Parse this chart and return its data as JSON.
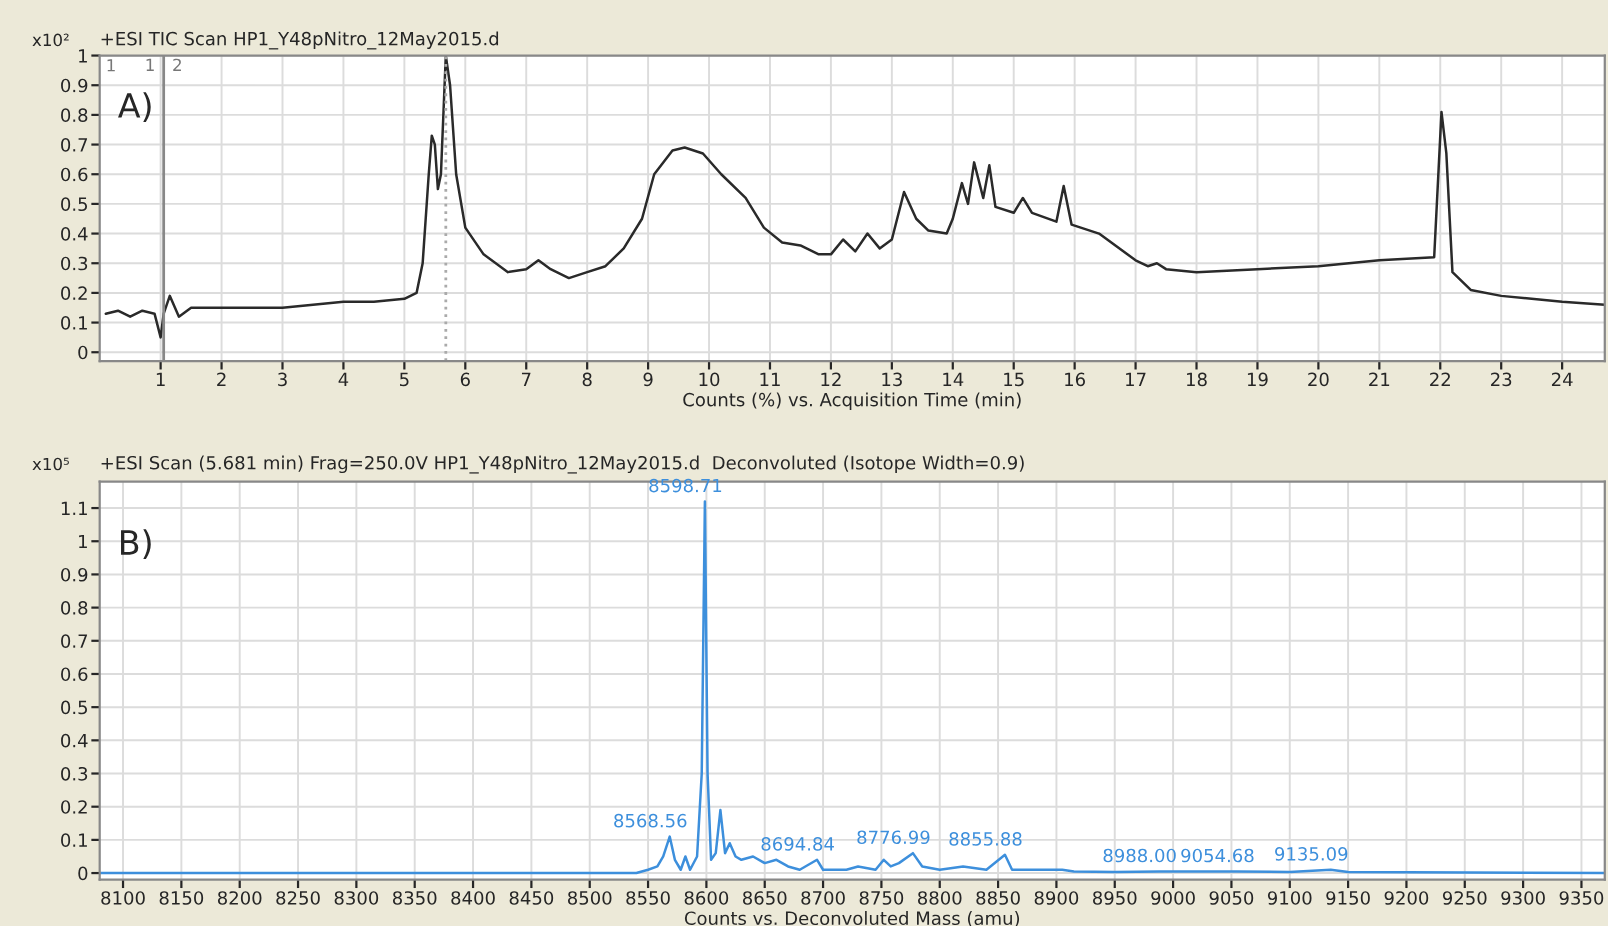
{
  "chart_data": [
    {
      "type": "line",
      "title": "+ESI TIC Scan HP1_Y48pNitro_12May2015.d",
      "xlabel": "Counts (%) vs. Acquisition Time (min)",
      "xlim": [
        0,
        24.7
      ],
      "ylim": [
        -0.03,
        1.0
      ],
      "xticks": [
        1,
        2,
        3,
        4,
        5,
        6,
        7,
        8,
        9,
        10,
        11,
        12,
        13,
        14,
        15,
        16,
        17,
        18,
        19,
        20,
        21,
        22,
        23,
        24
      ],
      "yticks": [
        0,
        0.1,
        0.2,
        0.3,
        0.4,
        0.5,
        0.6,
        0.7,
        0.8,
        0.9,
        1
      ],
      "grid": true,
      "series": [
        {
          "color": "#2a2a2a",
          "x": [
            0.1,
            0.3,
            0.5,
            0.7,
            0.9,
            1.0,
            1.05,
            1.15,
            1.3,
            1.5,
            2,
            3,
            4,
            4.5,
            5,
            5.2,
            5.3,
            5.4,
            5.45,
            5.5,
            5.55,
            5.6,
            5.68,
            5.75,
            5.85,
            6,
            6.3,
            6.7,
            7,
            7.2,
            7.4,
            7.7,
            8,
            8.3,
            8.6,
            8.9,
            9.1,
            9.4,
            9.6,
            9.9,
            10.2,
            10.6,
            10.9,
            11.2,
            11.5,
            11.8,
            12,
            12.2,
            12.4,
            12.6,
            12.8,
            13.0,
            13.2,
            13.4,
            13.6,
            13.9,
            14.0,
            14.15,
            14.25,
            14.35,
            14.5,
            14.6,
            14.7,
            15.0,
            15.15,
            15.3,
            15.7,
            15.82,
            15.95,
            16.4,
            17.0,
            17.2,
            17.35,
            17.5,
            18,
            19,
            20,
            21,
            21.9,
            22.02,
            22.1,
            22.2,
            22.5,
            23,
            24,
            24.7
          ],
          "values": [
            0.13,
            0.14,
            0.12,
            0.14,
            0.13,
            0.05,
            0.13,
            0.19,
            0.12,
            0.15,
            0.15,
            0.15,
            0.17,
            0.17,
            0.18,
            0.2,
            0.3,
            0.6,
            0.73,
            0.7,
            0.55,
            0.6,
            1.0,
            0.9,
            0.6,
            0.42,
            0.33,
            0.27,
            0.28,
            0.31,
            0.28,
            0.25,
            0.27,
            0.29,
            0.35,
            0.45,
            0.6,
            0.68,
            0.69,
            0.67,
            0.6,
            0.52,
            0.42,
            0.37,
            0.36,
            0.33,
            0.33,
            0.38,
            0.34,
            0.4,
            0.35,
            0.38,
            0.54,
            0.45,
            0.41,
            0.4,
            0.45,
            0.57,
            0.5,
            0.64,
            0.52,
            0.63,
            0.49,
            0.47,
            0.52,
            0.47,
            0.44,
            0.56,
            0.43,
            0.4,
            0.31,
            0.29,
            0.3,
            0.28,
            0.27,
            0.28,
            0.29,
            0.31,
            0.32,
            0.81,
            0.67,
            0.27,
            0.21,
            0.19,
            0.17,
            0.16
          ]
        }
      ],
      "ref_lines": [
        {
          "axis": "x",
          "value": 1.05,
          "color": "#888888"
        },
        {
          "axis": "x",
          "value": 5.68,
          "color": "#aaaaaa",
          "line_style": "dotted"
        }
      ],
      "annotations": [
        "x10²",
        "A)",
        "1",
        "1",
        "2"
      ]
    },
    {
      "type": "line",
      "title": "+ESI Scan (5.681 min) Frag=250.0V HP1_Y48pNitro_12May2015.d  Deconvoluted (Isotope Width=0.9)",
      "xlabel": "Counts vs. Deconvoluted Mass (amu)",
      "xlim": [
        8080,
        9370
      ],
      "ylim": [
        -0.02,
        1.18
      ],
      "xticks": [
        8100,
        8150,
        8200,
        8250,
        8300,
        8350,
        8400,
        8450,
        8500,
        8550,
        8600,
        8650,
        8700,
        8750,
        8800,
        8850,
        8900,
        8950,
        9000,
        9050,
        9100,
        9150,
        9200,
        9250,
        9300,
        9350
      ],
      "yticks": [
        0,
        0.1,
        0.2,
        0.3,
        0.4,
        0.5,
        0.6,
        0.7,
        0.8,
        0.9,
        1,
        1.1
      ],
      "grid": true,
      "series": [
        {
          "color": "#3d8fdc",
          "x": [
            8080,
            8540,
            8550,
            8558,
            8563,
            8568.56,
            8573,
            8578,
            8582,
            8586,
            8592,
            8596,
            8598.71,
            8601,
            8604,
            8608,
            8612,
            8616,
            8620,
            8625,
            8630,
            8640,
            8650,
            8660,
            8670,
            8680,
            8694.84,
            8700,
            8720,
            8730,
            8745,
            8752,
            8758,
            8765,
            8776.99,
            8785,
            8800,
            8820,
            8840,
            8855.88,
            8862,
            8880,
            8905,
            8915,
            8950,
            8988,
            9054.68,
            9100,
            9135.09,
            9150,
            9370
          ],
          "values": [
            0,
            0,
            0.01,
            0.02,
            0.05,
            0.11,
            0.04,
            0.01,
            0.05,
            0.01,
            0.05,
            0.3,
            1.12,
            0.3,
            0.04,
            0.06,
            0.19,
            0.06,
            0.09,
            0.05,
            0.04,
            0.05,
            0.03,
            0.04,
            0.02,
            0.01,
            0.04,
            0.01,
            0.01,
            0.02,
            0.01,
            0.04,
            0.02,
            0.03,
            0.06,
            0.02,
            0.01,
            0.02,
            0.01,
            0.055,
            0.01,
            0.01,
            0.01,
            0.005,
            0.003,
            0.005,
            0.005,
            0.003,
            0.01,
            0.003,
            0
          ]
        }
      ],
      "annotations": [
        "x10⁵",
        "B)",
        {
          "text": "8598.71",
          "x": 8598.71,
          "y": 1.12
        },
        {
          "text": "8568.56",
          "x": 8568.56,
          "y": 0.11
        },
        {
          "text": "8694.84",
          "x": 8694.84,
          "y": 0.04
        },
        {
          "text": "8776.99",
          "x": 8776.99,
          "y": 0.06
        },
        {
          "text": "8855.88",
          "x": 8855.88,
          "y": 0.055
        },
        {
          "text": "8988.00",
          "x": 8988.0,
          "y": 0.005
        },
        {
          "text": "9054.68",
          "x": 9054.68,
          "y": 0.005
        },
        {
          "text": "9135.09",
          "x": 9135.09,
          "y": 0.01
        }
      ]
    }
  ]
}
